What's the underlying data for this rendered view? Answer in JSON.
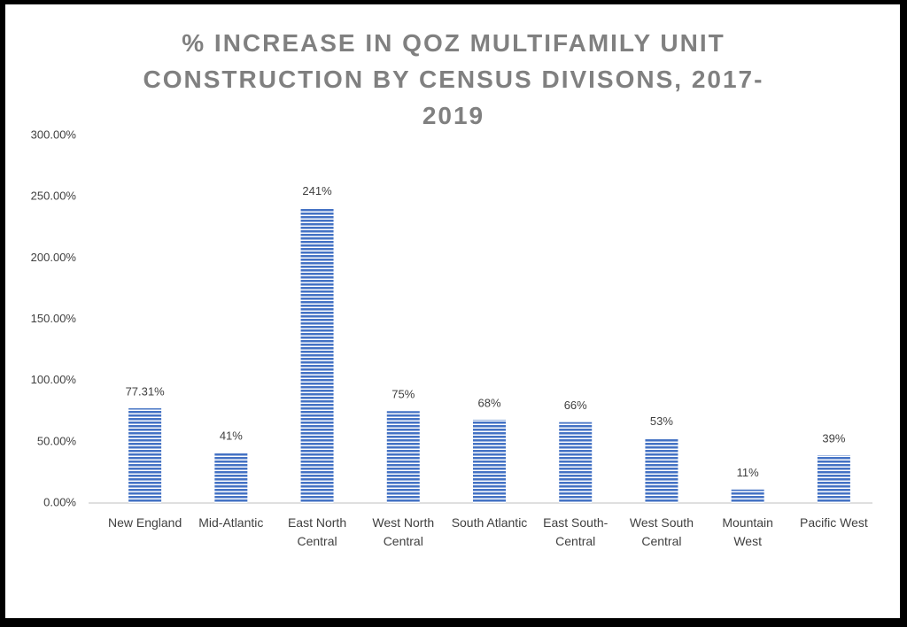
{
  "chart_data": {
    "type": "bar",
    "title": "% INCREASE IN QOZ MULTIFAMILY UNIT CONSTRUCTION BY CENSUS DIVISONS, 2017-2019",
    "categories": [
      "New England",
      "Mid-Atlantic",
      "East North Central",
      "West North Central",
      "South Atlantic",
      "East South-Central",
      "West South Central",
      "Mountain West",
      "Pacific West"
    ],
    "values": [
      77.31,
      41,
      241,
      75,
      68,
      66,
      53,
      11,
      39
    ],
    "value_labels": [
      "77.31%",
      "41%",
      "241%",
      "75%",
      "68%",
      "66%",
      "53%",
      "11%",
      "39%"
    ],
    "color": "#4472c4",
    "ylim": [
      0,
      300
    ],
    "yticks": [
      {
        "value": 0,
        "label": "0.00%"
      },
      {
        "value": 50,
        "label": "50.00%"
      },
      {
        "value": 100,
        "label": "100.00%"
      },
      {
        "value": 150,
        "label": "150.00%"
      },
      {
        "value": 200,
        "label": "200.00%"
      },
      {
        "value": 250,
        "label": "250.00%"
      },
      {
        "value": 300,
        "label": "300.00%"
      }
    ],
    "grid": false
  }
}
